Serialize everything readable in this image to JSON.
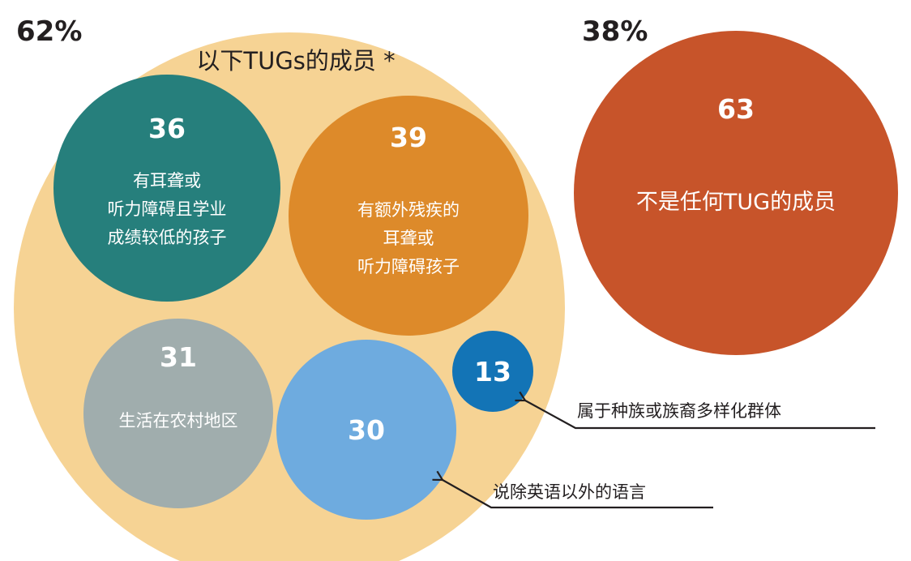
{
  "colors": {
    "members_group": "#f6d394",
    "hearing_low_academic": "#267f7c",
    "additional_disability": "#dd8a2a",
    "rural": "#a0adad",
    "non_english": "#6eabdf",
    "diverse": "#1374b6",
    "non_member": "#c7542a"
  },
  "members": {
    "percent": "62%",
    "title": "以下TUGs的成员 *"
  },
  "non_members": {
    "percent": "38%",
    "value": "63",
    "label": "不是任何TUG的成员"
  },
  "groups": [
    {
      "value": "36",
      "label_lines": [
        "有耳聋或",
        "听力障碍且学业",
        "成绩较低的孩子"
      ]
    },
    {
      "value": "39",
      "label_lines": [
        "有额外残疾的",
        "耳聋或",
        "听力障碍孩子"
      ]
    },
    {
      "value": "31",
      "label_lines": [
        "生活在农村地区"
      ]
    },
    {
      "value": "30",
      "label_lines": []
    },
    {
      "value": "13",
      "label_lines": []
    }
  ],
  "callouts": {
    "diverse": "属于种族或族裔多样化群体",
    "non_english": "说除英语以外的语言"
  }
}
